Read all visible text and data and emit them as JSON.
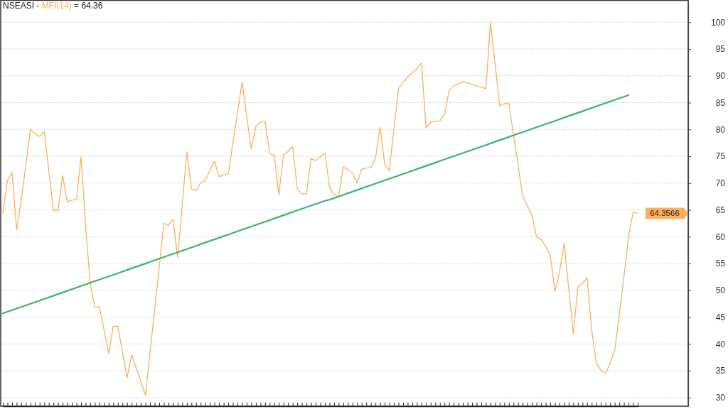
{
  "chart_data": {
    "type": "line",
    "title": "NSEASI -",
    "grid": "y",
    "annotations": [
      "= 64.36"
    ],
    "categories": [
      null,
      null,
      null,
      null,
      null,
      null,
      null,
      null,
      null,
      null,
      null,
      null,
      null,
      null,
      null,
      null,
      null,
      null,
      null,
      null,
      null,
      null,
      null,
      null,
      null,
      null,
      null,
      null,
      null,
      null,
      null,
      null,
      null,
      null,
      null,
      null,
      null,
      null,
      null,
      null,
      null,
      null,
      null,
      null,
      null,
      null,
      null,
      null,
      null,
      null,
      null,
      null,
      null,
      null,
      null,
      null,
      null,
      null,
      null,
      null,
      null,
      null,
      null,
      null,
      null,
      null,
      null,
      null,
      null,
      null,
      null,
      null,
      null,
      null,
      null,
      null,
      null,
      null,
      null,
      null,
      null,
      null,
      null,
      null,
      null,
      null,
      null,
      null,
      null,
      null,
      null,
      null,
      null,
      null,
      null,
      null,
      null,
      null,
      null,
      null,
      null,
      null,
      null,
      null,
      null,
      null,
      null,
      null,
      null,
      null,
      null,
      null,
      null,
      null,
      null,
      null,
      null,
      null,
      null,
      null,
      null,
      null,
      null,
      null,
      null,
      null,
      null,
      null,
      null,
      null,
      null,
      null,
      null,
      null,
      null,
      null,
      null,
      null,
      null
    ],
    "ylim": [
      28.4,
      104
    ],
    "yticks": [
      30,
      35,
      40,
      45,
      50,
      55,
      60,
      65,
      70,
      75,
      80,
      85,
      90,
      95,
      100
    ],
    "series": [
      {
        "name": "MFI(14)",
        "color": "#ffae5e",
        "values": [
          64.4,
          70.5,
          72.0,
          61.3,
          66.8,
          73.3,
          80.0,
          79.2,
          78.7,
          79.6,
          72.3,
          64.9,
          64.9,
          71.4,
          66.5,
          66.8,
          67.0,
          74.9,
          62.0,
          51.2,
          46.8,
          47.0,
          42.6,
          38.2,
          43.3,
          43.3,
          38.5,
          33.7,
          38.0,
          35.5,
          33.0,
          30.4,
          38.4,
          46.4,
          54.5,
          62.5,
          62.1,
          63.2,
          56.1,
          66.0,
          75.8,
          68.9,
          68.6,
          70.0,
          70.5,
          72.3,
          74.1,
          71.2,
          71.5,
          71.7,
          77.4,
          83.1,
          88.8,
          82.5,
          76.3,
          80.6,
          81.4,
          81.5,
          75.5,
          75.2,
          67.8,
          75.2,
          75.9,
          76.8,
          68.9,
          68.0,
          68.0,
          74.6,
          74.2,
          74.9,
          75.6,
          69.3,
          67.8,
          67.5,
          73.0,
          72.5,
          71.9,
          70.0,
          72.6,
          72.8,
          72.9,
          74.6,
          80.4,
          73.5,
          72.3,
          80.0,
          87.6,
          88.7,
          89.8,
          90.6,
          91.3,
          92.4,
          80.3,
          81.3,
          81.5,
          81.6,
          82.8,
          87.2,
          88.1,
          88.5,
          88.9,
          88.7,
          88.4,
          88.1,
          87.9,
          87.6,
          100.0,
          92.2,
          84.4,
          84.8,
          84.8,
          79.0,
          73.3,
          67.5,
          65.8,
          64.0,
          60.0,
          59.5,
          58.2,
          56.5,
          49.8,
          53.4,
          58.8,
          50.4,
          41.9,
          50.6,
          51.3,
          52.4,
          42.6,
          36.4,
          35.1,
          34.5,
          36.4,
          38.8,
          45.4,
          52.5,
          60.0,
          64.6,
          64.3566
        ],
        "value_labels": [
          null,
          null,
          null,
          null,
          null,
          null,
          null,
          null,
          null,
          null,
          null,
          null,
          null,
          null,
          null,
          null,
          null,
          null,
          null,
          null,
          null,
          null,
          null,
          null,
          null,
          null,
          null,
          null,
          null,
          null,
          null,
          null,
          null,
          null,
          null,
          null,
          null,
          null,
          null,
          null,
          null,
          null,
          null,
          null,
          null,
          null,
          null,
          null,
          null,
          null,
          null,
          null,
          null,
          null,
          null,
          null,
          null,
          null,
          null,
          null,
          null,
          null,
          null,
          null,
          null,
          null,
          null,
          null,
          null,
          null,
          null,
          null,
          null,
          null,
          null,
          null,
          null,
          null,
          null,
          null,
          null,
          null,
          null,
          null,
          null,
          null,
          null,
          null,
          null,
          null,
          null,
          null,
          null,
          null,
          null,
          null,
          null,
          null,
          null,
          null,
          null,
          null,
          null,
          null,
          null,
          null,
          null,
          null,
          null,
          null,
          null,
          null,
          null,
          null,
          null,
          null,
          null,
          null,
          null,
          null,
          null,
          null,
          null,
          null,
          null,
          null,
          null,
          null,
          null,
          null,
          null,
          null,
          null,
          null,
          null,
          null,
          null,
          null,
          "64.3566"
        ]
      },
      {
        "type": "line",
        "color": "#3cb371",
        "values": [
          45.7,
          46.0,
          46.3,
          46.6,
          46.9,
          47.2,
          47.5,
          47.8,
          48.1,
          48.4,
          48.7,
          49.0,
          49.3,
          49.6,
          49.9,
          50.2,
          50.5,
          50.8,
          51.1,
          51.4,
          51.7,
          52.0,
          52.3,
          52.6,
          52.9,
          53.2,
          53.5,
          53.8,
          54.1,
          54.4,
          54.7,
          55.0,
          55.3,
          55.6,
          55.9,
          56.2,
          56.5,
          56.8,
          57.1,
          57.4,
          57.7,
          58.0,
          58.3,
          58.6,
          58.9,
          59.2,
          59.5,
          59.8,
          60.1,
          60.4,
          60.7,
          61.0,
          61.3,
          61.6,
          61.9,
          62.2,
          62.5,
          62.8,
          63.1,
          63.4,
          63.7,
          64.0,
          64.3,
          64.6,
          64.9,
          65.2,
          65.5,
          65.8,
          66.1,
          66.4,
          66.7,
          66.9,
          67.2,
          67.5,
          67.8,
          68.1,
          68.4,
          68.7,
          69.0,
          69.3,
          69.6,
          69.9,
          70.2,
          70.5,
          70.8,
          71.1,
          71.4,
          71.7,
          72.0,
          72.3,
          72.6,
          72.9,
          73.2,
          73.5,
          73.8,
          74.1,
          74.4,
          74.7,
          75.0,
          75.3,
          75.6,
          75.9,
          76.2,
          76.5,
          76.8,
          77.1,
          77.4,
          77.7,
          78.0,
          78.3,
          78.6,
          78.9,
          79.2,
          79.5,
          79.8,
          80.1,
          80.4,
          80.7,
          81.0,
          81.3,
          81.6,
          81.9,
          82.2,
          82.5,
          82.8,
          83.1,
          83.4,
          83.7,
          84.0,
          84.3,
          84.6,
          84.9,
          85.2,
          85.5,
          85.8,
          86.1,
          86.4,
          null,
          null
        ]
      }
    ]
  }
}
